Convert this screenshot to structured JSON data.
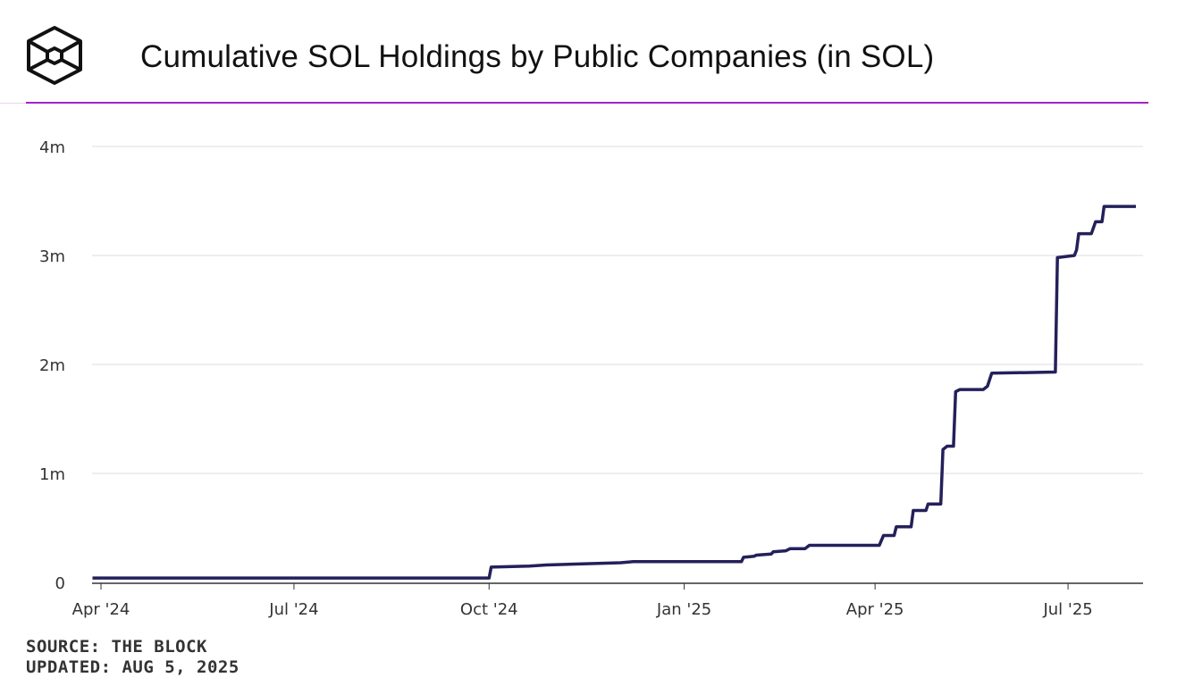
{
  "header": {
    "logo": "The Block",
    "title": "Cumulative SOL Holdings by Public Companies (in SOL)"
  },
  "footer": {
    "source": "SOURCE: THE BLOCK",
    "updated": "UPDATED: AUG 5, 2025"
  },
  "colors": {
    "line": "#24205a",
    "accent_rule": "#a224c8",
    "grid": "#e8e8e8",
    "axis": "#333333"
  },
  "chart_data": {
    "type": "line",
    "title": "Cumulative SOL Holdings by Public Companies (in SOL)",
    "xlabel": "",
    "ylabel": "",
    "step": true,
    "grid": true,
    "ylim": [
      0,
      4000000
    ],
    "y_ticks": [
      {
        "value": 0,
        "label": "0"
      },
      {
        "value": 1000000,
        "label": "1m"
      },
      {
        "value": 2000000,
        "label": "2m"
      },
      {
        "value": 3000000,
        "label": "3m"
      },
      {
        "value": 4000000,
        "label": "4m"
      }
    ],
    "x_ticks": [
      {
        "date": "2024-04-01",
        "label": "Apr '24"
      },
      {
        "date": "2024-07-01",
        "label": "Jul '24"
      },
      {
        "date": "2024-10-01",
        "label": "Oct '24"
      },
      {
        "date": "2025-01-01",
        "label": "Jan '25"
      },
      {
        "date": "2025-04-01",
        "label": "Apr '25"
      },
      {
        "date": "2025-07-01",
        "label": "Jul '25"
      }
    ],
    "series": [
      {
        "points": [
          [
            "2024-03-28",
            40000
          ],
          [
            "2024-10-01",
            40000
          ],
          [
            "2024-10-02",
            140000
          ],
          [
            "2024-10-20",
            150000
          ],
          [
            "2024-10-28",
            160000
          ],
          [
            "2024-12-02",
            180000
          ],
          [
            "2024-12-08",
            190000
          ],
          [
            "2025-01-28",
            190000
          ],
          [
            "2025-01-29",
            230000
          ],
          [
            "2025-02-03",
            240000
          ],
          [
            "2025-02-04",
            250000
          ],
          [
            "2025-02-11",
            260000
          ],
          [
            "2025-02-12",
            280000
          ],
          [
            "2025-02-18",
            290000
          ],
          [
            "2025-02-20",
            310000
          ],
          [
            "2025-02-27",
            310000
          ],
          [
            "2025-03-01",
            340000
          ],
          [
            "2025-04-03",
            340000
          ],
          [
            "2025-04-05",
            430000
          ],
          [
            "2025-04-10",
            430000
          ],
          [
            "2025-04-11",
            510000
          ],
          [
            "2025-04-18",
            510000
          ],
          [
            "2025-04-19",
            660000
          ],
          [
            "2025-04-25",
            660000
          ],
          [
            "2025-04-26",
            720000
          ],
          [
            "2025-05-02",
            720000
          ],
          [
            "2025-05-03",
            1220000
          ],
          [
            "2025-05-05",
            1250000
          ],
          [
            "2025-05-08",
            1250000
          ],
          [
            "2025-05-09",
            1750000
          ],
          [
            "2025-05-11",
            1770000
          ],
          [
            "2025-05-22",
            1770000
          ],
          [
            "2025-05-24",
            1800000
          ],
          [
            "2025-05-26",
            1920000
          ],
          [
            "2025-06-25",
            1930000
          ],
          [
            "2025-06-26",
            2980000
          ],
          [
            "2025-07-04",
            3000000
          ],
          [
            "2025-07-05",
            3050000
          ],
          [
            "2025-07-06",
            3200000
          ],
          [
            "2025-07-12",
            3200000
          ],
          [
            "2025-07-14",
            3310000
          ],
          [
            "2025-07-17",
            3310000
          ],
          [
            "2025-07-18",
            3450000
          ],
          [
            "2025-08-02",
            3450000
          ]
        ]
      }
    ]
  }
}
